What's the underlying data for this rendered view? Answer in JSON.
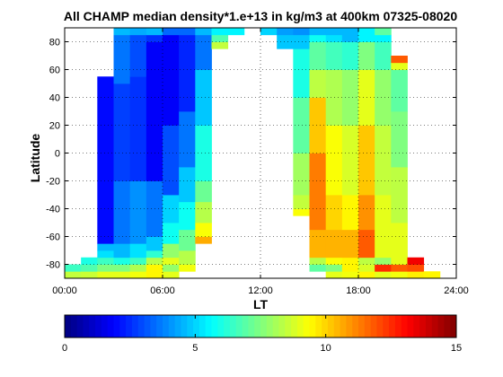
{
  "chart_data": {
    "type": "heatmap",
    "title": "All CHAMP median density*1.e+13 in kg/m3 at 400km 07325-08020",
    "xlabel": "LT",
    "ylabel": "Latitude",
    "xlim": [
      0,
      24
    ],
    "ylim": [
      -90,
      90
    ],
    "xticks": [
      "00:00",
      "06:00",
      "12:00",
      "18:00",
      "24:00"
    ],
    "yticks": [
      "-80",
      "-60",
      "-40",
      "-20",
      "0",
      "20",
      "40",
      "60",
      "80"
    ],
    "grid": true,
    "colorbar": {
      "colormap": "jet",
      "range": [
        0,
        15
      ],
      "ticks": [
        "0",
        "5",
        "10",
        "15"
      ],
      "placement": "bottom"
    },
    "cell_size": {
      "lt_hours": 1,
      "lat_degrees": 5
    },
    "columns": [
      {
        "lt_start": 0,
        "cells": [
          [
            -90,
            -85,
            8.5
          ],
          [
            -85,
            -80,
            6.5
          ]
        ]
      },
      {
        "lt_start": 1,
        "cells": [
          [
            -90,
            -85,
            8.6
          ],
          [
            -85,
            -80,
            6.8
          ],
          [
            -80,
            -75,
            6.0
          ]
        ]
      },
      {
        "lt_start": 2,
        "cells": [
          [
            -90,
            -85,
            9.0
          ],
          [
            -85,
            -80,
            7.5
          ],
          [
            -80,
            -75,
            6.5
          ],
          [
            -75,
            -70,
            5.2
          ],
          [
            -70,
            -65,
            4.6
          ],
          [
            -65,
            55,
            2.0
          ]
        ]
      },
      {
        "lt_start": 3,
        "cells": [
          [
            -90,
            -85,
            9.0
          ],
          [
            -85,
            -80,
            7.5
          ],
          [
            -80,
            -75,
            6.0
          ],
          [
            -75,
            -65,
            4.6
          ],
          [
            -65,
            -20,
            3.6
          ],
          [
            -20,
            50,
            2.8
          ],
          [
            50,
            85,
            3.6
          ],
          [
            85,
            90,
            4.6
          ]
        ]
      },
      {
        "lt_start": 4,
        "cells": [
          [
            -90,
            -85,
            9.2
          ],
          [
            -85,
            -80,
            8.2
          ],
          [
            -80,
            -75,
            6.5
          ],
          [
            -75,
            -65,
            5.2
          ],
          [
            -65,
            -20,
            4.0
          ],
          [
            -20,
            55,
            2.6
          ],
          [
            55,
            85,
            3.0
          ],
          [
            85,
            90,
            4.4
          ]
        ]
      },
      {
        "lt_start": 5,
        "cells": [
          [
            -90,
            -85,
            9.5
          ],
          [
            -85,
            -80,
            9.5
          ],
          [
            -80,
            -75,
            8.3
          ],
          [
            -75,
            -70,
            6.3
          ],
          [
            -70,
            -60,
            4.8
          ],
          [
            -60,
            -20,
            3.6
          ],
          [
            -20,
            80,
            1.8
          ],
          [
            80,
            85,
            2.6
          ],
          [
            85,
            90,
            4.6
          ]
        ]
      },
      {
        "lt_start": 6,
        "cells": [
          [
            -90,
            -85,
            9.0
          ],
          [
            -85,
            -80,
            7.8
          ],
          [
            -80,
            -75,
            9.0
          ],
          [
            -75,
            -65,
            7.8
          ],
          [
            -65,
            -50,
            5.8
          ],
          [
            -50,
            -30,
            5.0
          ],
          [
            -30,
            20,
            3.0
          ],
          [
            20,
            85,
            1.8
          ],
          [
            85,
            90,
            3.4
          ]
        ]
      },
      {
        "lt_start": 7,
        "cells": [
          [
            -85,
            -80,
            9.2
          ],
          [
            -80,
            -70,
            8.3
          ],
          [
            -70,
            -55,
            7.2
          ],
          [
            -55,
            -35,
            5.8
          ],
          [
            -35,
            -10,
            4.8
          ],
          [
            -10,
            30,
            3.6
          ],
          [
            30,
            85,
            2.4
          ],
          [
            85,
            90,
            3.4
          ]
        ]
      },
      {
        "lt_start": 8,
        "cells": [
          [
            -65,
            -60,
            10.6
          ],
          [
            -60,
            -50,
            9.3
          ],
          [
            -50,
            -35,
            8.3
          ],
          [
            -35,
            -20,
            7.2
          ],
          [
            -20,
            20,
            6.0
          ],
          [
            20,
            60,
            4.8
          ],
          [
            60,
            85,
            3.6
          ],
          [
            85,
            90,
            4.6
          ]
        ]
      },
      {
        "lt_start": 9,
        "cells": [
          [
            75,
            80,
            8.5
          ],
          [
            80,
            85,
            6.8
          ],
          [
            85,
            90,
            5.5
          ]
        ]
      },
      {
        "lt_start": 10,
        "cells": [
          [
            85,
            90,
            5.5
          ]
        ]
      },
      {
        "lt_start": 12,
        "cells": [
          [
            85,
            90,
            5.0
          ]
        ]
      },
      {
        "lt_start": 13,
        "cells": [
          [
            75,
            85,
            4.8
          ],
          [
            85,
            90,
            4.2
          ]
        ]
      },
      {
        "lt_start": 14,
        "cells": [
          [
            -45,
            -40,
            9.3
          ],
          [
            -40,
            -30,
            8.5
          ],
          [
            -30,
            0,
            8.0
          ],
          [
            0,
            40,
            7.0
          ],
          [
            40,
            75,
            6.0
          ],
          [
            75,
            85,
            4.8
          ],
          [
            85,
            90,
            4.0
          ]
        ]
      },
      {
        "lt_start": 15,
        "cells": [
          [
            -85,
            -80,
            7.0
          ],
          [
            -80,
            -75,
            8.3
          ],
          [
            -75,
            -55,
            10.5
          ],
          [
            -55,
            -40,
            11.3
          ],
          [
            -40,
            0,
            11.3
          ],
          [
            0,
            40,
            10.2
          ],
          [
            40,
            60,
            8.4
          ],
          [
            60,
            80,
            7.0
          ],
          [
            80,
            85,
            5.8
          ],
          [
            85,
            90,
            4.6
          ]
        ]
      },
      {
        "lt_start": 16,
        "cells": [
          [
            -90,
            -85,
            9.0
          ],
          [
            -85,
            -80,
            7.5
          ],
          [
            -80,
            -75,
            9.3
          ],
          [
            -75,
            -55,
            10.5
          ],
          [
            -55,
            -30,
            10.0
          ],
          [
            -30,
            20,
            9.3
          ],
          [
            20,
            60,
            8.2
          ],
          [
            60,
            80,
            6.6
          ],
          [
            80,
            85,
            5.2
          ],
          [
            85,
            90,
            4.6
          ]
        ]
      },
      {
        "lt_start": 17,
        "cells": [
          [
            -90,
            -85,
            9.2
          ],
          [
            -85,
            -75,
            9.5
          ],
          [
            -75,
            -55,
            10.5
          ],
          [
            -55,
            -30,
            9.5
          ],
          [
            -30,
            20,
            8.8
          ],
          [
            20,
            60,
            7.8
          ],
          [
            60,
            80,
            6.3
          ],
          [
            80,
            90,
            4.6
          ]
        ]
      },
      {
        "lt_start": 18,
        "cells": [
          [
            -90,
            -85,
            9.5
          ],
          [
            -85,
            -80,
            8.8
          ],
          [
            -80,
            -75,
            8.4
          ],
          [
            -75,
            -55,
            11.8
          ],
          [
            -55,
            -30,
            11.0
          ],
          [
            -30,
            20,
            10.2
          ],
          [
            20,
            60,
            9.0
          ],
          [
            60,
            80,
            7.5
          ],
          [
            80,
            90,
            5.5
          ]
        ]
      },
      {
        "lt_start": 19,
        "cells": [
          [
            -90,
            -85,
            9.0
          ],
          [
            -85,
            -80,
            12.5
          ],
          [
            -80,
            -75,
            7.8
          ],
          [
            -75,
            -30,
            9.0
          ],
          [
            -30,
            20,
            8.5
          ],
          [
            20,
            60,
            7.8
          ],
          [
            60,
            80,
            6.6
          ],
          [
            80,
            85,
            5.5
          ],
          [
            85,
            90,
            7.0
          ]
        ]
      },
      {
        "lt_start": 20,
        "cells": [
          [
            -90,
            -85,
            9.2
          ],
          [
            -85,
            -80,
            11.8
          ],
          [
            -80,
            -50,
            9.0
          ],
          [
            -50,
            -10,
            8.4
          ],
          [
            -10,
            30,
            7.5
          ],
          [
            30,
            60,
            7.0
          ],
          [
            60,
            65,
            9.0
          ],
          [
            65,
            70,
            11.8
          ]
        ]
      },
      {
        "lt_start": 21,
        "cells": [
          [
            -90,
            -85,
            9.6
          ],
          [
            -85,
            -80,
            12.0
          ],
          [
            -80,
            -75,
            13.3
          ]
        ]
      },
      {
        "lt_start": 22,
        "cells": [
          [
            -90,
            -85,
            9.5
          ]
        ]
      }
    ]
  }
}
